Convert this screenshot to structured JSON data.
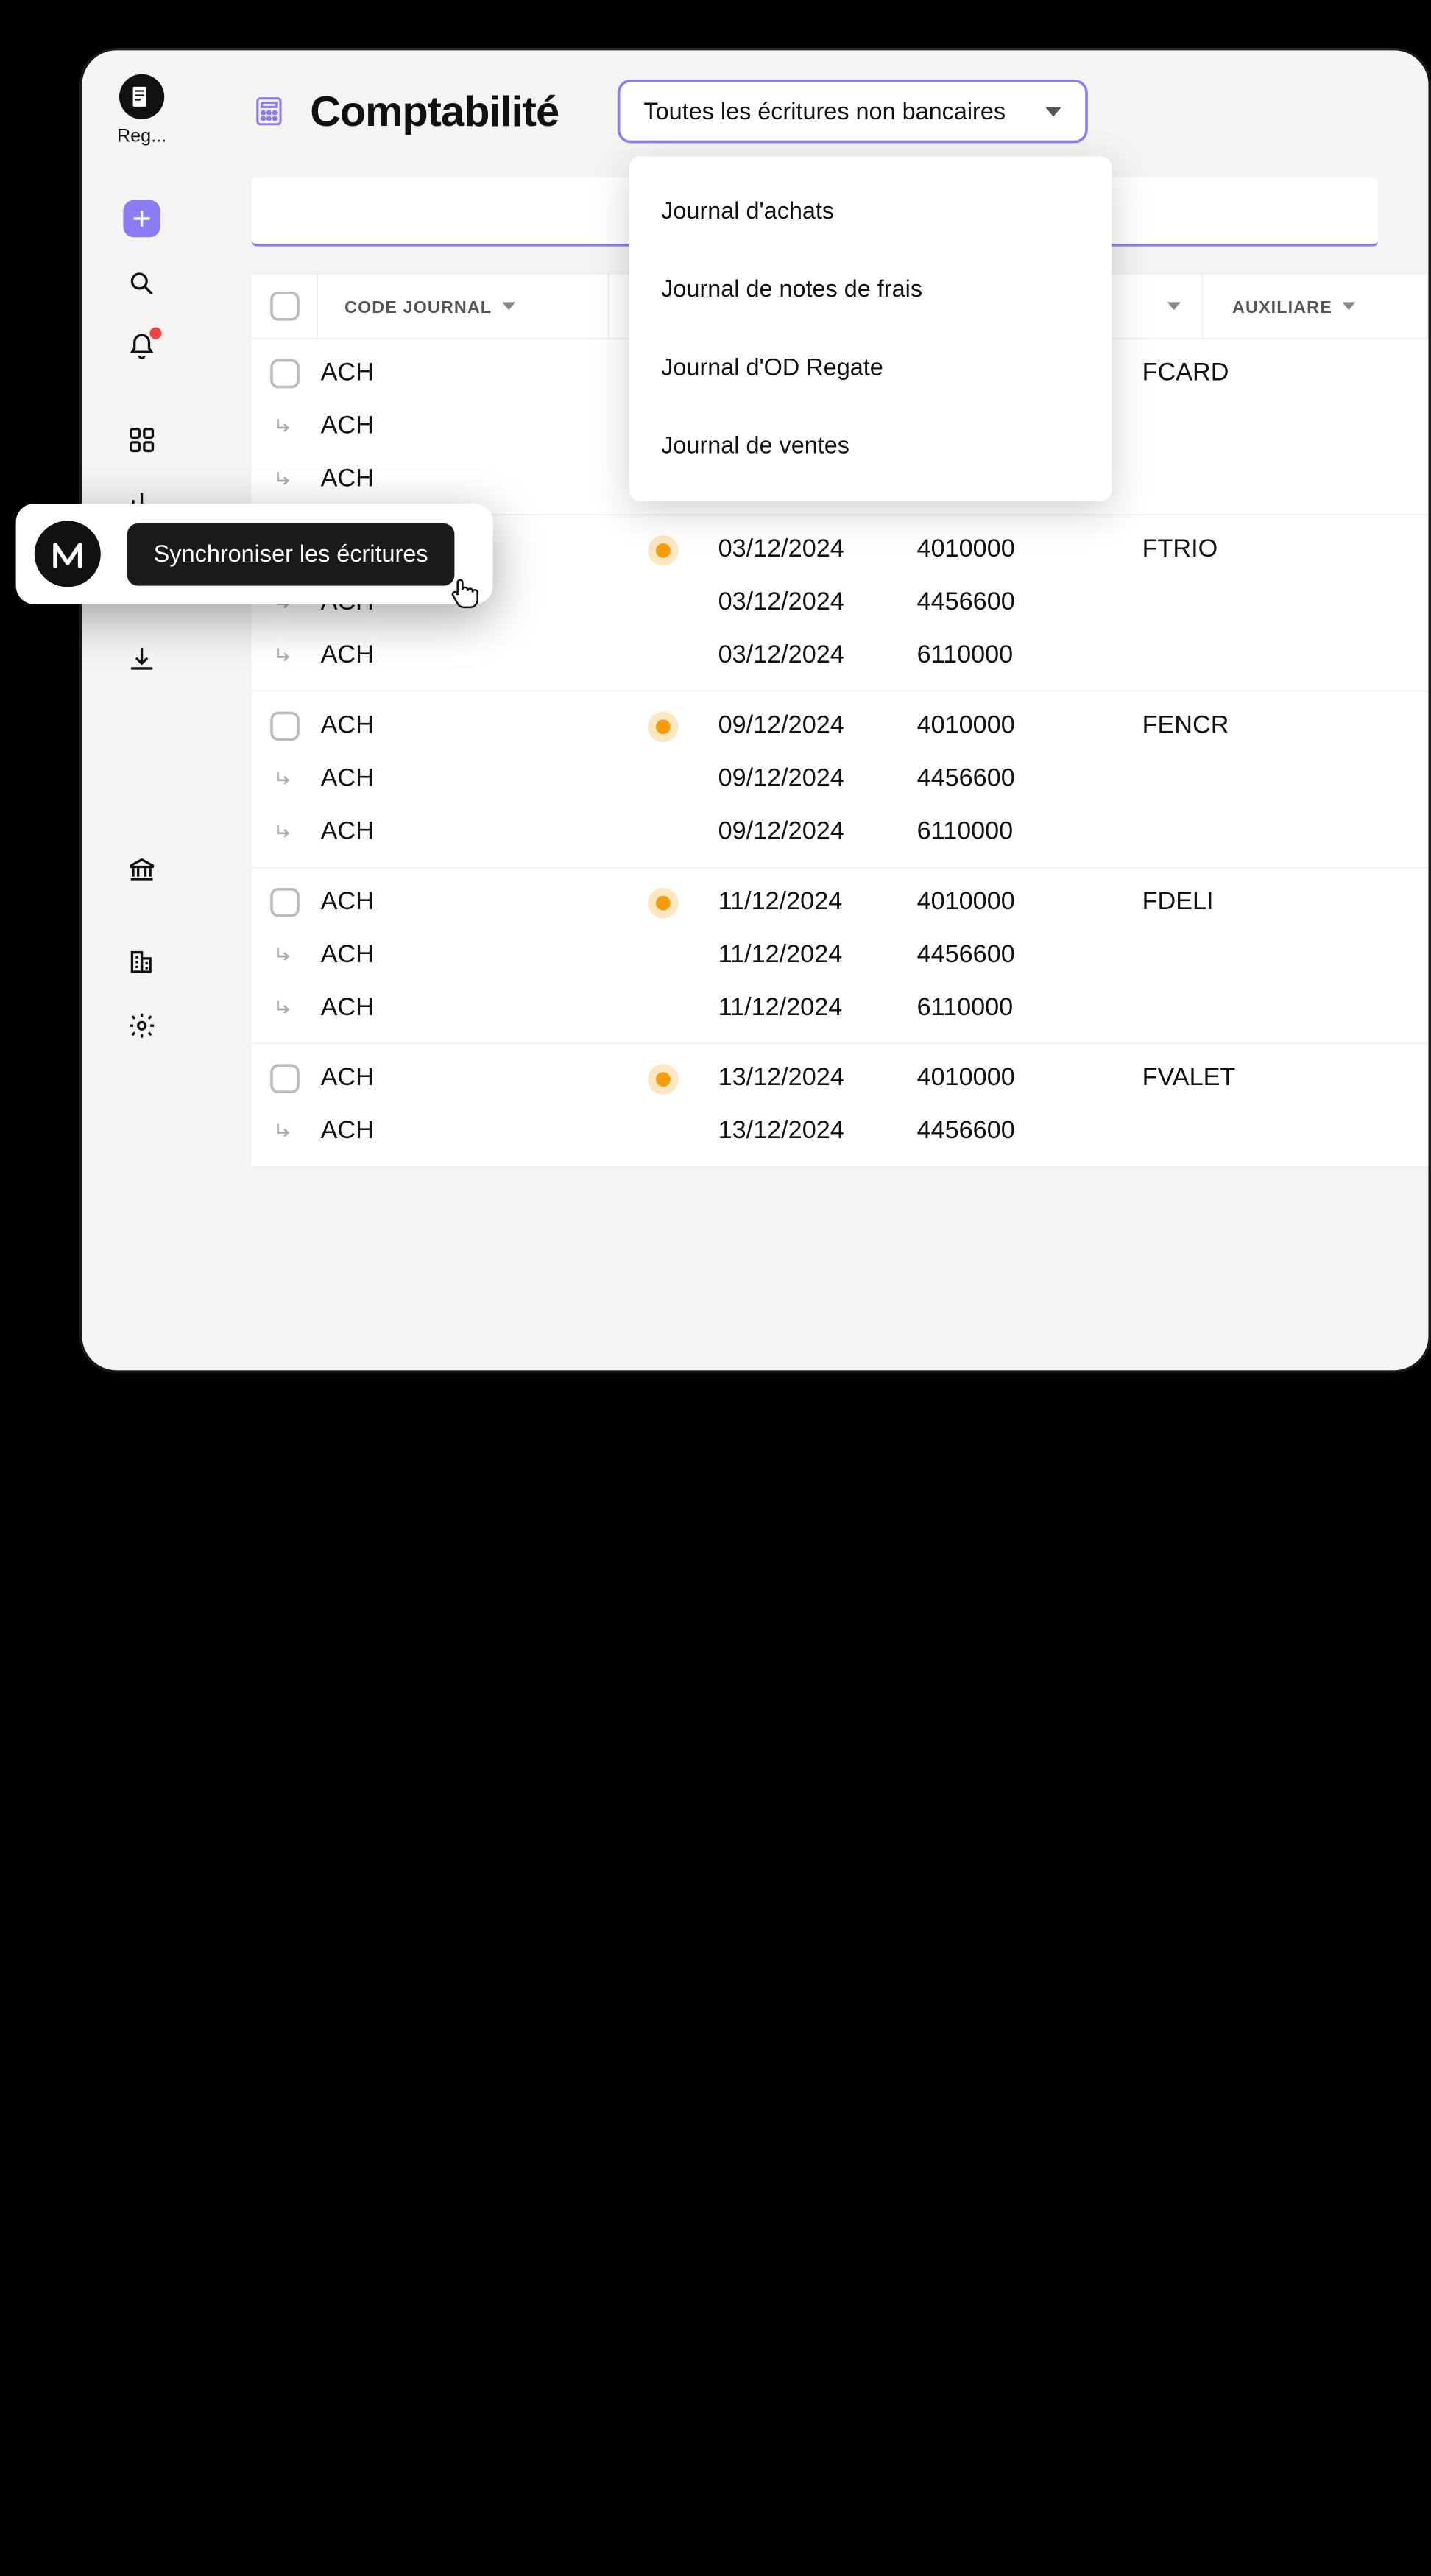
{
  "colors": {
    "accent": "#8b7cf6",
    "dot": "#f59e0b",
    "badge": "#ef4444",
    "window_bg": "#f5f4f2",
    "text": "#111111"
  },
  "sidebar": {
    "brand_label": "Reg..."
  },
  "header": {
    "title": "Comptabilité",
    "filter_label": "Toutes les écritures non bancaires"
  },
  "dropdown": {
    "items": [
      "Journal d'achats",
      "Journal de notes de frais",
      "Journal d'OD Regate",
      "Journal de ventes"
    ]
  },
  "table": {
    "columns": {
      "code": "CODE JOURNAL",
      "aux": "AUXILIARE"
    },
    "groups": [
      {
        "checked": false,
        "aux": "FCARD",
        "rows": [
          {
            "code": "ACH",
            "sub": false,
            "dot": false,
            "date": "",
            "acct": ""
          },
          {
            "code": "ACH",
            "sub": true,
            "dot": false,
            "date": "",
            "acct": ""
          },
          {
            "code": "ACH",
            "sub": true,
            "dot": false,
            "date": "",
            "acct": ""
          }
        ]
      },
      {
        "checked": true,
        "aux": "FTRIO",
        "rows": [
          {
            "code": "ACH",
            "sub": false,
            "dot": true,
            "date": "03/12/2024",
            "acct": "4010000"
          },
          {
            "code": "ACH",
            "sub": true,
            "dot": false,
            "date": "03/12/2024",
            "acct": "4456600"
          },
          {
            "code": "ACH",
            "sub": true,
            "dot": false,
            "date": "03/12/2024",
            "acct": "6110000"
          }
        ]
      },
      {
        "checked": false,
        "aux": "FENCR",
        "rows": [
          {
            "code": "ACH",
            "sub": false,
            "dot": true,
            "date": "09/12/2024",
            "acct": "4010000"
          },
          {
            "code": "ACH",
            "sub": true,
            "dot": false,
            "date": "09/12/2024",
            "acct": "4456600"
          },
          {
            "code": "ACH",
            "sub": true,
            "dot": false,
            "date": "09/12/2024",
            "acct": "6110000"
          }
        ]
      },
      {
        "checked": false,
        "aux": "FDELI",
        "rows": [
          {
            "code": "ACH",
            "sub": false,
            "dot": true,
            "date": "11/12/2024",
            "acct": "4010000"
          },
          {
            "code": "ACH",
            "sub": true,
            "dot": false,
            "date": "11/12/2024",
            "acct": "4456600"
          },
          {
            "code": "ACH",
            "sub": true,
            "dot": false,
            "date": "11/12/2024",
            "acct": "6110000"
          }
        ]
      },
      {
        "checked": false,
        "aux": "FVALET",
        "rows": [
          {
            "code": "ACH",
            "sub": false,
            "dot": true,
            "date": "13/12/2024",
            "acct": "4010000"
          },
          {
            "code": "ACH",
            "sub": true,
            "dot": false,
            "date": "13/12/2024",
            "acct": "4456600"
          }
        ]
      }
    ]
  },
  "sync": {
    "button_label": "Synchroniser les écritures"
  }
}
